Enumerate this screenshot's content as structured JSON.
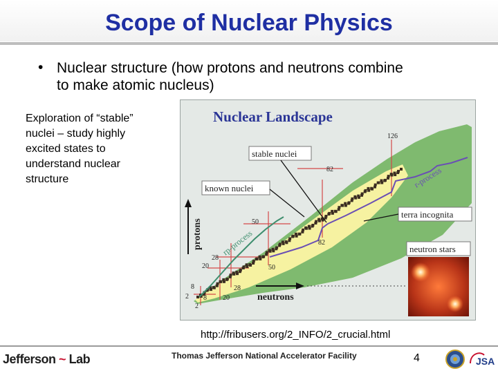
{
  "slide": {
    "title": "Scope of Nuclear Physics",
    "bullet_marker": "•",
    "bullet_line1": "Nuclear structure (how protons and neutrons combine",
    "bullet_line2": "to make atomic nucleus)",
    "side_lines": [
      "Exploration of “stable”",
      "nuclei – study highly",
      "excited states to",
      "understand nuclear",
      "structure"
    ],
    "source_url": "http://fribusers.org/2_INFO/2_crucial.html",
    "page_number": "4"
  },
  "figure": {
    "title": "Nuclear Landscape",
    "labels": {
      "stable_nuclei": "stable nuclei",
      "known_nuclei": "known nuclei",
      "terra_incognita": "terra incognita",
      "neutron_stars": "neutron stars",
      "r_process": "r-process",
      "rp_process": "rp-process",
      "protons": "protons",
      "neutrons": "neutrons"
    },
    "magic_numbers": {
      "n126": "126",
      "p82": "82",
      "n82": "82",
      "p50": "50",
      "n50": "50",
      "p28": "28",
      "n28": "28",
      "p20": "20",
      "n20": "20",
      "p8": "8",
      "n8": "8",
      "p2": "2",
      "n2": "2"
    },
    "colors": {
      "title": "#2a3596",
      "background": "#e4e9e6",
      "drip_region": "#7fba6f",
      "known_region": "#f6f2a1",
      "stable": "#3b2d22",
      "magic_lines": "#d44848",
      "r_process": "#6a4fb4",
      "rp_process": "#3e8e6e"
    }
  },
  "footer": {
    "logo_text_a": "Jefferson",
    "logo_text_b": "Lab",
    "facility": "Thomas Jefferson National Accelerator Facility",
    "jsa_text": "JSA"
  }
}
